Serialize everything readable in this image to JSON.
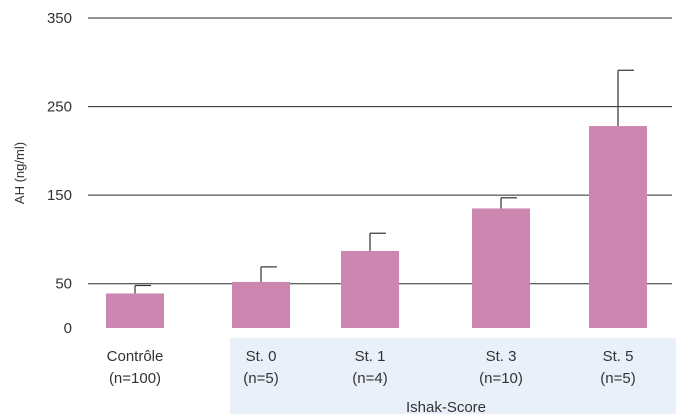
{
  "chart_data": {
    "type": "bar",
    "ylabel": "AH (ng/ml)",
    "xlabel": "",
    "ylim": [
      0,
      350
    ],
    "yticks": [
      0,
      50,
      150,
      250,
      350
    ],
    "grid": true,
    "categories": [
      {
        "label": "Contrôle",
        "sub": "(n=100)"
      },
      {
        "label": "St. 0",
        "sub": "(n=5)"
      },
      {
        "label": "St. 1",
        "sub": "(n=4)"
      },
      {
        "label": "St. 3",
        "sub": "(n=10)"
      },
      {
        "label": "St. 5",
        "sub": "(n=5)"
      }
    ],
    "values": [
      39,
      52,
      87,
      135,
      228
    ],
    "error_upper": [
      48,
      69,
      107,
      147,
      291
    ],
    "group_label": "Ishak-Score",
    "bar_color": "#cc87b0",
    "group_band_color": "#e9f0f9",
    "grid_color": "#2a2a2a"
  }
}
